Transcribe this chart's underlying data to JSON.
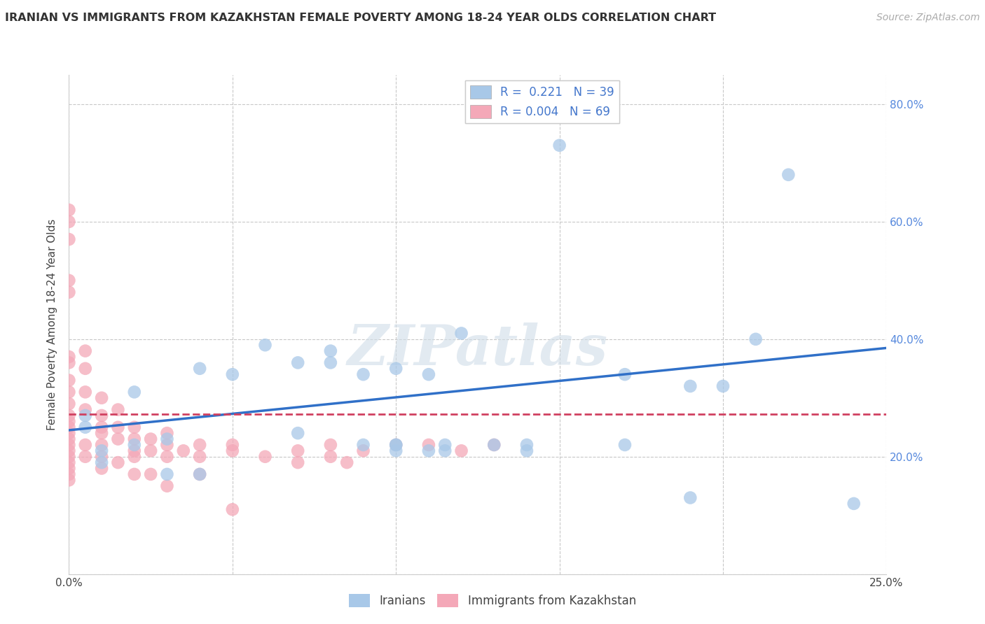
{
  "title": "IRANIAN VS IMMIGRANTS FROM KAZAKHSTAN FEMALE POVERTY AMONG 18-24 YEAR OLDS CORRELATION CHART",
  "source": "Source: ZipAtlas.com",
  "ylabel": "Female Poverty Among 18-24 Year Olds",
  "xlim": [
    0.0,
    0.25
  ],
  "ylim": [
    0.0,
    0.85
  ],
  "x_ticks": [
    0.0,
    0.05,
    0.1,
    0.15,
    0.2,
    0.25
  ],
  "x_tick_labels": [
    "0.0%",
    "",
    "",
    "",
    "",
    "25.0%"
  ],
  "y_ticks": [
    0.0,
    0.2,
    0.4,
    0.6,
    0.8
  ],
  "y_tick_labels": [
    "",
    "20.0%",
    "40.0%",
    "60.0%",
    "80.0%"
  ],
  "blue_R": 0.221,
  "blue_N": 39,
  "pink_R": 0.004,
  "pink_N": 69,
  "watermark": "ZIPatlas",
  "blue_color": "#a8c8e8",
  "pink_color": "#f4a8b8",
  "blue_line_color": "#3070c8",
  "pink_line_color": "#d04060",
  "grid_color": "#c8c8c8",
  "blue_scatter_x": [
    0.005,
    0.005,
    0.01,
    0.01,
    0.02,
    0.02,
    0.03,
    0.03,
    0.04,
    0.04,
    0.05,
    0.06,
    0.07,
    0.07,
    0.08,
    0.08,
    0.09,
    0.09,
    0.1,
    0.1,
    0.1,
    0.1,
    0.11,
    0.11,
    0.115,
    0.115,
    0.12,
    0.13,
    0.14,
    0.14,
    0.15,
    0.17,
    0.17,
    0.19,
    0.19,
    0.2,
    0.21,
    0.22,
    0.24
  ],
  "blue_scatter_y": [
    0.27,
    0.25,
    0.21,
    0.19,
    0.22,
    0.31,
    0.23,
    0.17,
    0.35,
    0.17,
    0.34,
    0.39,
    0.36,
    0.24,
    0.38,
    0.36,
    0.34,
    0.22,
    0.35,
    0.22,
    0.22,
    0.21,
    0.34,
    0.21,
    0.22,
    0.21,
    0.41,
    0.22,
    0.22,
    0.21,
    0.73,
    0.34,
    0.22,
    0.32,
    0.13,
    0.32,
    0.4,
    0.68,
    0.12
  ],
  "pink_scatter_x": [
    0.0,
    0.0,
    0.0,
    0.0,
    0.0,
    0.0,
    0.0,
    0.0,
    0.0,
    0.0,
    0.0,
    0.0,
    0.0,
    0.0,
    0.0,
    0.0,
    0.0,
    0.0,
    0.0,
    0.0,
    0.0,
    0.0,
    0.005,
    0.005,
    0.005,
    0.005,
    0.005,
    0.005,
    0.01,
    0.01,
    0.01,
    0.01,
    0.01,
    0.01,
    0.01,
    0.015,
    0.015,
    0.015,
    0.015,
    0.02,
    0.02,
    0.02,
    0.02,
    0.02,
    0.025,
    0.025,
    0.025,
    0.03,
    0.03,
    0.03,
    0.03,
    0.035,
    0.04,
    0.04,
    0.04,
    0.05,
    0.05,
    0.05,
    0.06,
    0.07,
    0.07,
    0.08,
    0.08,
    0.085,
    0.09,
    0.1,
    0.11,
    0.12,
    0.13
  ],
  "pink_scatter_y": [
    0.62,
    0.6,
    0.57,
    0.5,
    0.48,
    0.37,
    0.36,
    0.33,
    0.31,
    0.29,
    0.27,
    0.26,
    0.25,
    0.24,
    0.23,
    0.22,
    0.21,
    0.2,
    0.19,
    0.18,
    0.17,
    0.16,
    0.38,
    0.35,
    0.31,
    0.28,
    0.22,
    0.2,
    0.3,
    0.27,
    0.25,
    0.24,
    0.22,
    0.2,
    0.18,
    0.28,
    0.25,
    0.23,
    0.19,
    0.25,
    0.23,
    0.21,
    0.2,
    0.17,
    0.23,
    0.21,
    0.17,
    0.24,
    0.22,
    0.2,
    0.15,
    0.21,
    0.22,
    0.2,
    0.17,
    0.22,
    0.21,
    0.11,
    0.2,
    0.21,
    0.19,
    0.22,
    0.2,
    0.19,
    0.21,
    0.22,
    0.22,
    0.21,
    0.22
  ]
}
